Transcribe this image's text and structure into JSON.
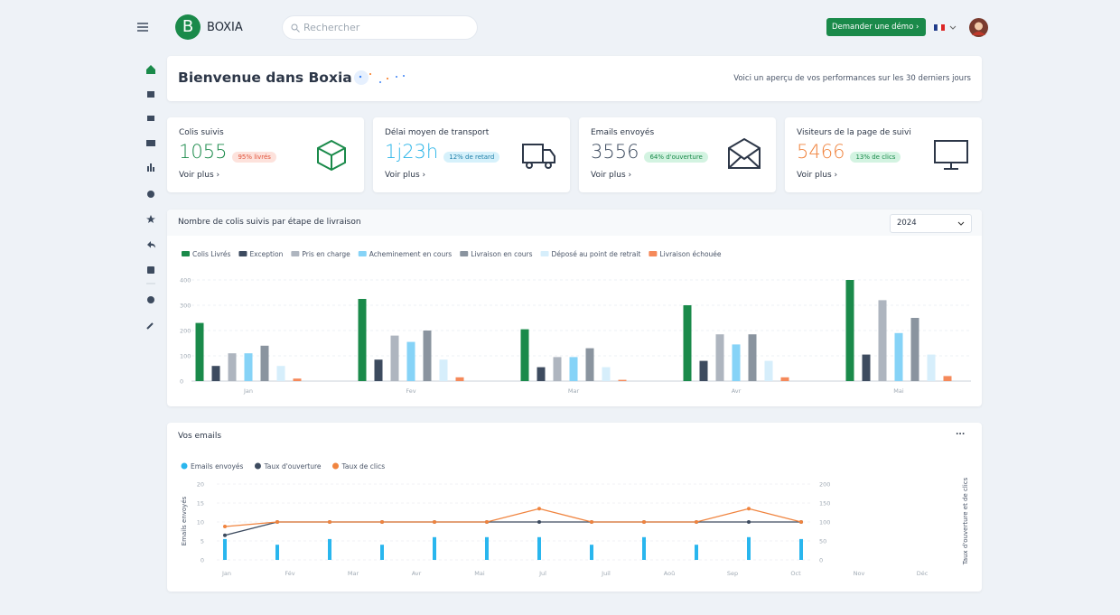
{
  "header": {
    "logo_letter": "B",
    "logo_text": "BOXIA",
    "search_placeholder": "Rechercher",
    "demo_button": "Demander une démo"
  },
  "welcome": {
    "title": "Bienvenue dans Boxia",
    "subtitle": "Voici un aperçu de vos performances sur les 30 derniers jours"
  },
  "cards": [
    {
      "label": "Colis suivis",
      "value": 1055,
      "badge": "95% livrés",
      "link": "Voir plus"
    },
    {
      "label": "Délai moyen de transport",
      "value": "1j23h",
      "badge": "12% de retard",
      "link": "Voir plus"
    },
    {
      "label": "Emails envoyés",
      "value": 3556,
      "badge": "64% d'ouverture",
      "link": "Voir plus"
    },
    {
      "label": "Visiteurs de  la page de suivi",
      "value": 5466,
      "badge": "13% de clics",
      "link": "Voir plus"
    }
  ],
  "delivery_chart": {
    "type": "bar",
    "title": "Nombre de colis suivis par étape de livraison",
    "year_select": "2024",
    "categories": [
      "Jan",
      "Fev",
      "Mar",
      "Avr",
      "Mai"
    ],
    "series": [
      {
        "name": "Colis Livrés",
        "color": "#1a8a4a",
        "values": [
          230,
          325,
          205,
          300,
          400
        ]
      },
      {
        "name": "Exception",
        "color": "#3d4b5f",
        "values": [
          60,
          85,
          55,
          80,
          105
        ]
      },
      {
        "name": "Pris en charge",
        "color": "#aeb5bf",
        "values": [
          110,
          180,
          95,
          185,
          320
        ]
      },
      {
        "name": "Acheminement en cours",
        "color": "#86d3f7",
        "values": [
          110,
          155,
          95,
          145,
          190
        ]
      },
      {
        "name": "Livraison en cours",
        "color": "#8a949f",
        "values": [
          140,
          200,
          130,
          185,
          250
        ]
      },
      {
        "name": "Déposé au point de retrait",
        "color": "#d6eefb",
        "values": [
          60,
          85,
          55,
          80,
          105
        ]
      },
      {
        "name": "Livraison échouée",
        "color": "#f5895a",
        "values": [
          10,
          15,
          5,
          15,
          20
        ]
      }
    ],
    "ylim": [
      0,
      400
    ],
    "yticks": [
      0,
      100,
      200,
      300,
      400
    ],
    "grid": true
  },
  "emails_chart": {
    "type": "combo",
    "title": "Vos emails",
    "menu": "...",
    "categories": [
      "Jan",
      "Fév",
      "Mar",
      "Avr",
      "Mai",
      "Jul",
      "Juil",
      "Aoû",
      "Sep",
      "Oct",
      "Nov",
      "Déc"
    ],
    "series": [
      {
        "name": "Emails envoyés",
        "color": "#29b6ee",
        "kind": "bar",
        "values": [
          5.5,
          4,
          5.5,
          4,
          6,
          6,
          6,
          4,
          6,
          4,
          6,
          5.5
        ]
      },
      {
        "name": "Taux d'ouverture",
        "color": "#3d4b5f",
        "kind": "line",
        "axis": "y2",
        "values": [
          65,
          100,
          100,
          100,
          100,
          100,
          100,
          100,
          100,
          100,
          100,
          100
        ]
      },
      {
        "name": "Taux de clics",
        "color": "#f0843f",
        "kind": "line",
        "axis": "y2",
        "values": [
          88,
          100,
          100,
          100,
          100,
          100,
          135,
          100,
          100,
          100,
          135,
          100
        ]
      }
    ],
    "ylabel": "Emails envoyés",
    "y2label": "Taux d'ouverture et de clics",
    "ylim": [
      0,
      20
    ],
    "yticks": [
      0,
      5,
      10,
      15,
      20
    ],
    "y2lim": [
      0,
      200
    ],
    "y2ticks": [
      0,
      50,
      100,
      150,
      200
    ],
    "grid": true
  }
}
